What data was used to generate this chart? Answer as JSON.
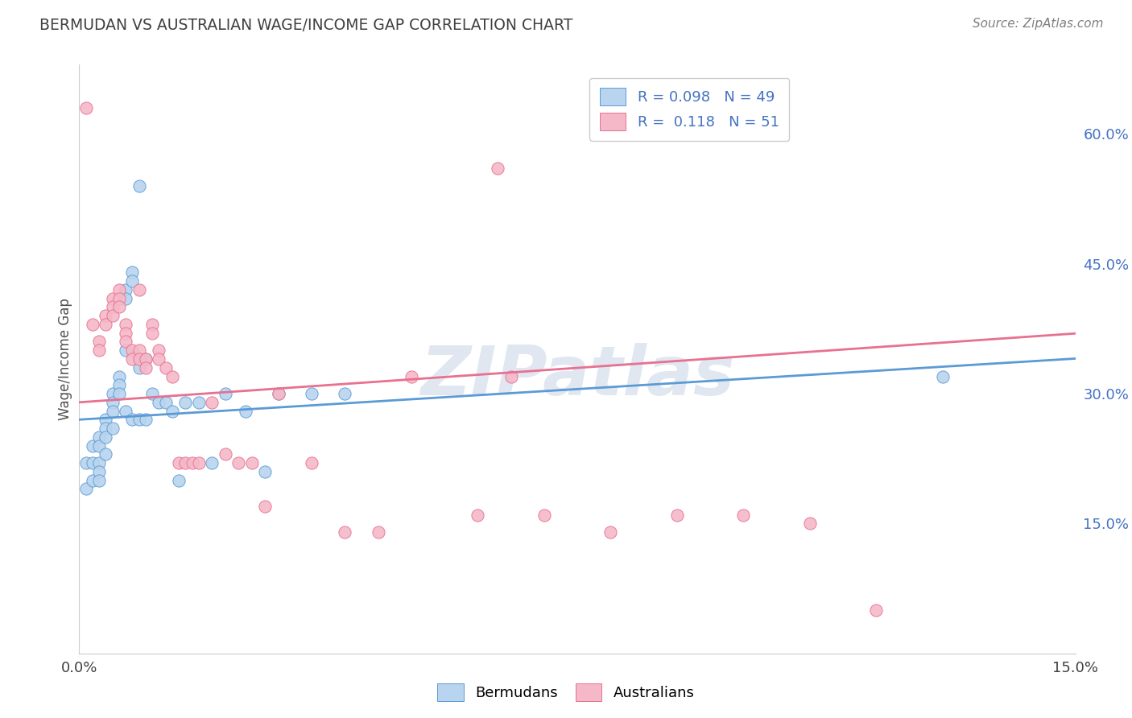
{
  "title": "BERMUDAN VS AUSTRALIAN WAGE/INCOME GAP CORRELATION CHART",
  "source": "Source: ZipAtlas.com",
  "ylabel": "Wage/Income Gap",
  "x_tick_labels": [
    "0.0%",
    "",
    "",
    "",
    "",
    "15.0%"
  ],
  "x_ticks": [
    0.0,
    0.03,
    0.06,
    0.09,
    0.12,
    0.15
  ],
  "y_ticks_right": [
    0.15,
    0.3,
    0.45,
    0.6
  ],
  "y_tick_labels_right": [
    "15.0%",
    "30.0%",
    "45.0%",
    "60.0%"
  ],
  "xlim": [
    0.0,
    0.15
  ],
  "ylim": [
    0.0,
    0.68
  ],
  "color_bermuda_fill": "#b8d4ee",
  "color_bermuda_edge": "#5b9bd5",
  "color_australia_fill": "#f4b8c8",
  "color_australia_edge": "#e87090",
  "color_line_bermuda": "#5b9bd5",
  "color_line_australia": "#e87090",
  "title_color": "#404040",
  "source_color": "#808080",
  "legend_text_color": "#4472c4",
  "watermark_color": "#ccd8e8",
  "grid_color": "#cccccc",
  "background_color": "#ffffff",
  "bermuda_x": [
    0.001,
    0.001,
    0.002,
    0.002,
    0.002,
    0.003,
    0.003,
    0.003,
    0.003,
    0.003,
    0.004,
    0.004,
    0.004,
    0.004,
    0.005,
    0.005,
    0.005,
    0.005,
    0.006,
    0.006,
    0.006,
    0.007,
    0.007,
    0.007,
    0.007,
    0.008,
    0.008,
    0.008,
    0.009,
    0.009,
    0.009,
    0.009,
    0.01,
    0.01,
    0.011,
    0.012,
    0.013,
    0.014,
    0.015,
    0.016,
    0.018,
    0.02,
    0.022,
    0.025,
    0.028,
    0.03,
    0.035,
    0.04,
    0.13
  ],
  "bermuda_y": [
    0.22,
    0.19,
    0.24,
    0.22,
    0.2,
    0.25,
    0.24,
    0.22,
    0.21,
    0.2,
    0.27,
    0.26,
    0.25,
    0.23,
    0.3,
    0.29,
    0.28,
    0.26,
    0.32,
    0.31,
    0.3,
    0.42,
    0.41,
    0.35,
    0.28,
    0.44,
    0.43,
    0.27,
    0.54,
    0.34,
    0.33,
    0.27,
    0.34,
    0.27,
    0.3,
    0.29,
    0.29,
    0.28,
    0.2,
    0.29,
    0.29,
    0.22,
    0.3,
    0.28,
    0.21,
    0.3,
    0.3,
    0.3,
    0.32
  ],
  "australia_x": [
    0.001,
    0.002,
    0.003,
    0.003,
    0.004,
    0.004,
    0.005,
    0.005,
    0.005,
    0.006,
    0.006,
    0.006,
    0.007,
    0.007,
    0.007,
    0.008,
    0.008,
    0.009,
    0.009,
    0.009,
    0.01,
    0.01,
    0.011,
    0.011,
    0.012,
    0.012,
    0.013,
    0.014,
    0.015,
    0.016,
    0.017,
    0.018,
    0.02,
    0.022,
    0.024,
    0.026,
    0.028,
    0.03,
    0.035,
    0.04,
    0.045,
    0.05,
    0.06,
    0.065,
    0.07,
    0.08,
    0.09,
    0.1,
    0.11,
    0.12,
    0.063
  ],
  "australia_y": [
    0.63,
    0.38,
    0.36,
    0.35,
    0.39,
    0.38,
    0.41,
    0.4,
    0.39,
    0.42,
    0.41,
    0.4,
    0.38,
    0.37,
    0.36,
    0.35,
    0.34,
    0.42,
    0.35,
    0.34,
    0.34,
    0.33,
    0.38,
    0.37,
    0.35,
    0.34,
    0.33,
    0.32,
    0.22,
    0.22,
    0.22,
    0.22,
    0.29,
    0.23,
    0.22,
    0.22,
    0.17,
    0.3,
    0.22,
    0.14,
    0.14,
    0.32,
    0.16,
    0.32,
    0.16,
    0.14,
    0.16,
    0.16,
    0.15,
    0.05,
    0.56
  ]
}
